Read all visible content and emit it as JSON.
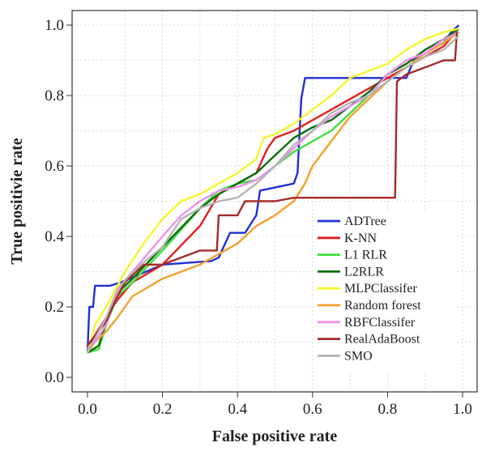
{
  "chart_data": {
    "type": "line",
    "title": "",
    "xlabel": "False positive rate",
    "ylabel": "True positivie rate",
    "xlim": [
      0,
      1
    ],
    "ylim": [
      0,
      1
    ],
    "xticks": [
      "0.0",
      "0.2",
      "0.4",
      "0.6",
      "0.8",
      "1.0"
    ],
    "yticks": [
      "0.0",
      "0.2",
      "0.4",
      "0.6",
      "0.8",
      "1.0"
    ],
    "grid": true,
    "legend_position": "bottom-right",
    "series": [
      {
        "name": "ADTree",
        "color": "#1f2fd6",
        "points": [
          [
            0,
            0.07
          ],
          [
            0.005,
            0.2
          ],
          [
            0.015,
            0.2
          ],
          [
            0.02,
            0.26
          ],
          [
            0.06,
            0.26
          ],
          [
            0.09,
            0.27
          ],
          [
            0.2,
            0.32
          ],
          [
            0.33,
            0.33
          ],
          [
            0.35,
            0.34
          ],
          [
            0.38,
            0.41
          ],
          [
            0.42,
            0.41
          ],
          [
            0.45,
            0.46
          ],
          [
            0.46,
            0.53
          ],
          [
            0.55,
            0.55
          ],
          [
            0.56,
            0.58
          ],
          [
            0.57,
            0.79
          ],
          [
            0.58,
            0.85
          ],
          [
            0.81,
            0.85
          ],
          [
            0.85,
            0.85
          ],
          [
            0.87,
            0.9
          ],
          [
            0.9,
            0.92
          ],
          [
            0.95,
            0.95
          ],
          [
            0.97,
            0.98
          ],
          [
            0.99,
            1.0
          ]
        ]
      },
      {
        "name": "K-NN",
        "color": "#e21f1f",
        "points": [
          [
            0,
            0.08
          ],
          [
            0.02,
            0.12
          ],
          [
            0.05,
            0.17
          ],
          [
            0.08,
            0.22
          ],
          [
            0.12,
            0.27
          ],
          [
            0.2,
            0.32
          ],
          [
            0.3,
            0.43
          ],
          [
            0.35,
            0.52
          ],
          [
            0.4,
            0.55
          ],
          [
            0.45,
            0.58
          ],
          [
            0.48,
            0.65
          ],
          [
            0.5,
            0.68
          ],
          [
            0.55,
            0.7
          ],
          [
            0.6,
            0.73
          ],
          [
            0.65,
            0.76
          ],
          [
            0.7,
            0.79
          ],
          [
            0.75,
            0.82
          ],
          [
            0.8,
            0.85
          ],
          [
            0.85,
            0.88
          ],
          [
            0.9,
            0.91
          ],
          [
            0.95,
            0.94
          ],
          [
            0.99,
            0.99
          ]
        ]
      },
      {
        "name": "L1 RLR",
        "color": "#3de03d",
        "points": [
          [
            0,
            0.07
          ],
          [
            0.03,
            0.08
          ],
          [
            0.05,
            0.15
          ],
          [
            0.08,
            0.23
          ],
          [
            0.12,
            0.27
          ],
          [
            0.2,
            0.36
          ],
          [
            0.3,
            0.48
          ],
          [
            0.35,
            0.53
          ],
          [
            0.4,
            0.55
          ],
          [
            0.45,
            0.56
          ],
          [
            0.5,
            0.6
          ],
          [
            0.55,
            0.64
          ],
          [
            0.6,
            0.67
          ],
          [
            0.65,
            0.7
          ],
          [
            0.7,
            0.75
          ],
          [
            0.75,
            0.8
          ],
          [
            0.8,
            0.84
          ],
          [
            0.85,
            0.88
          ],
          [
            0.9,
            0.92
          ],
          [
            0.95,
            0.95
          ],
          [
            0.99,
            0.99
          ]
        ]
      },
      {
        "name": "L2RLR",
        "color": "#0a6e0a",
        "points": [
          [
            0,
            0.07
          ],
          [
            0.03,
            0.09
          ],
          [
            0.05,
            0.16
          ],
          [
            0.08,
            0.24
          ],
          [
            0.12,
            0.28
          ],
          [
            0.2,
            0.37
          ],
          [
            0.3,
            0.48
          ],
          [
            0.35,
            0.52
          ],
          [
            0.4,
            0.55
          ],
          [
            0.45,
            0.58
          ],
          [
            0.5,
            0.63
          ],
          [
            0.55,
            0.68
          ],
          [
            0.6,
            0.71
          ],
          [
            0.65,
            0.73
          ],
          [
            0.7,
            0.77
          ],
          [
            0.75,
            0.81
          ],
          [
            0.8,
            0.86
          ],
          [
            0.85,
            0.89
          ],
          [
            0.9,
            0.93
          ],
          [
            0.95,
            0.96
          ],
          [
            0.99,
            0.99
          ]
        ]
      },
      {
        "name": "MLPClassifer",
        "color": "#f5f52a",
        "points": [
          [
            0,
            0.07
          ],
          [
            0.02,
            0.15
          ],
          [
            0.05,
            0.2
          ],
          [
            0.1,
            0.3
          ],
          [
            0.15,
            0.38
          ],
          [
            0.2,
            0.45
          ],
          [
            0.25,
            0.5
          ],
          [
            0.3,
            0.52
          ],
          [
            0.35,
            0.55
          ],
          [
            0.4,
            0.58
          ],
          [
            0.45,
            0.62
          ],
          [
            0.47,
            0.68
          ],
          [
            0.5,
            0.69
          ],
          [
            0.55,
            0.72
          ],
          [
            0.6,
            0.76
          ],
          [
            0.65,
            0.8
          ],
          [
            0.7,
            0.85
          ],
          [
            0.75,
            0.87
          ],
          [
            0.8,
            0.89
          ],
          [
            0.85,
            0.93
          ],
          [
            0.9,
            0.96
          ],
          [
            0.95,
            0.98
          ],
          [
            0.99,
            0.99
          ]
        ]
      },
      {
        "name": "Random forest",
        "color": "#f5a02a",
        "points": [
          [
            0,
            0.07
          ],
          [
            0.02,
            0.1
          ],
          [
            0.05,
            0.13
          ],
          [
            0.08,
            0.17
          ],
          [
            0.12,
            0.23
          ],
          [
            0.2,
            0.28
          ],
          [
            0.3,
            0.32
          ],
          [
            0.4,
            0.38
          ],
          [
            0.45,
            0.43
          ],
          [
            0.5,
            0.46
          ],
          [
            0.55,
            0.5
          ],
          [
            0.58,
            0.55
          ],
          [
            0.6,
            0.6
          ],
          [
            0.65,
            0.67
          ],
          [
            0.7,
            0.74
          ],
          [
            0.75,
            0.79
          ],
          [
            0.8,
            0.84
          ],
          [
            0.85,
            0.88
          ],
          [
            0.9,
            0.92
          ],
          [
            0.95,
            0.95
          ],
          [
            0.99,
            0.98
          ]
        ]
      },
      {
        "name": "RBFClassifer",
        "color": "#ef8fef",
        "points": [
          [
            0,
            0.08
          ],
          [
            0.02,
            0.1
          ],
          [
            0.05,
            0.15
          ],
          [
            0.08,
            0.24
          ],
          [
            0.12,
            0.3
          ],
          [
            0.2,
            0.4
          ],
          [
            0.25,
            0.46
          ],
          [
            0.3,
            0.5
          ],
          [
            0.35,
            0.53
          ],
          [
            0.4,
            0.54
          ],
          [
            0.45,
            0.56
          ],
          [
            0.5,
            0.6
          ],
          [
            0.55,
            0.65
          ],
          [
            0.6,
            0.7
          ],
          [
            0.65,
            0.74
          ],
          [
            0.7,
            0.77
          ],
          [
            0.75,
            0.8
          ],
          [
            0.8,
            0.86
          ],
          [
            0.85,
            0.9
          ],
          [
            0.9,
            0.92
          ],
          [
            0.95,
            0.96
          ],
          [
            0.99,
            0.98
          ]
        ]
      },
      {
        "name": "RealAdaBoost",
        "color": "#a62a2a",
        "points": [
          [
            0,
            0.09
          ],
          [
            0.05,
            0.16
          ],
          [
            0.08,
            0.23
          ],
          [
            0.1,
            0.27
          ],
          [
            0.15,
            0.32
          ],
          [
            0.2,
            0.32
          ],
          [
            0.3,
            0.36
          ],
          [
            0.345,
            0.36
          ],
          [
            0.35,
            0.46
          ],
          [
            0.4,
            0.46
          ],
          [
            0.42,
            0.5
          ],
          [
            0.5,
            0.5
          ],
          [
            0.55,
            0.51
          ],
          [
            0.6,
            0.51
          ],
          [
            0.82,
            0.51
          ],
          [
            0.825,
            0.84
          ],
          [
            0.85,
            0.86
          ],
          [
            0.9,
            0.88
          ],
          [
            0.95,
            0.9
          ],
          [
            0.98,
            0.9
          ],
          [
            0.985,
            0.98
          ]
        ]
      },
      {
        "name": "SMO",
        "color": "#b4b4b4",
        "points": [
          [
            0,
            0.07
          ],
          [
            0.03,
            0.13
          ],
          [
            0.05,
            0.17
          ],
          [
            0.08,
            0.25
          ],
          [
            0.12,
            0.3
          ],
          [
            0.2,
            0.37
          ],
          [
            0.25,
            0.45
          ],
          [
            0.3,
            0.48
          ],
          [
            0.35,
            0.5
          ],
          [
            0.4,
            0.51
          ],
          [
            0.45,
            0.55
          ],
          [
            0.5,
            0.6
          ],
          [
            0.55,
            0.66
          ],
          [
            0.6,
            0.7
          ],
          [
            0.65,
            0.75
          ],
          [
            0.7,
            0.78
          ],
          [
            0.75,
            0.8
          ],
          [
            0.8,
            0.84
          ],
          [
            0.85,
            0.88
          ],
          [
            0.9,
            0.91
          ],
          [
            0.95,
            0.93
          ],
          [
            0.99,
            0.97
          ]
        ]
      }
    ]
  }
}
